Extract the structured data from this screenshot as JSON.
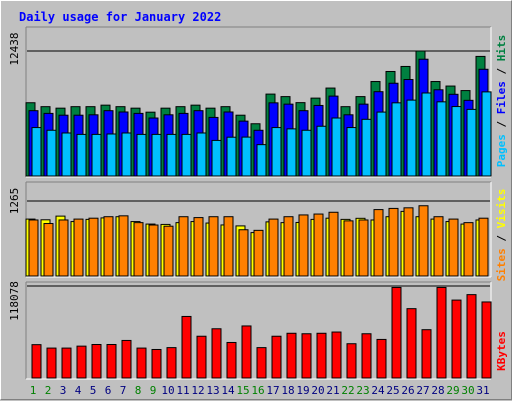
{
  "chart_data": {
    "type": "bar",
    "title": "Daily usage for January 2022",
    "categories": [
      "1",
      "2",
      "3",
      "4",
      "5",
      "6",
      "7",
      "8",
      "9",
      "10",
      "11",
      "12",
      "13",
      "14",
      "15",
      "16",
      "17",
      "18",
      "19",
      "20",
      "21",
      "22",
      "23",
      "24",
      "25",
      "26",
      "27",
      "28",
      "29",
      "30",
      "31"
    ],
    "weekend_days": [
      "1",
      "2",
      "8",
      "9",
      "15",
      "16",
      "22",
      "23",
      "29",
      "30"
    ],
    "colors": {
      "hits": "#008040",
      "files": "#0000ff",
      "pages": "#00c0ff",
      "visits": "#ffff00",
      "sites": "#ff8000",
      "kbytes": "#ff0000",
      "title": "#0000ff",
      "weekday_label": "#000080",
      "weekend_label": "#008000",
      "plot_background": "#c0c0c0"
    },
    "panels": [
      {
        "id": "hits-files-pages",
        "y_max_label": "12438",
        "ymax": 12438,
        "legend": [
          "Pages",
          "Files",
          "Hits"
        ],
        "series": [
          {
            "name": "Hits",
            "key": "hits",
            "values": [
              7290,
              6900,
              6750,
              6900,
              6900,
              7050,
              6900,
              6750,
              6350,
              6750,
              6900,
              7050,
              6750,
              6900,
              6050,
              5200,
              8150,
              7900,
              7300,
              7750,
              8750,
              6900,
              7900,
              9400,
              10400,
              10900,
              12438,
              9400,
              8950,
              8500,
              11900
            ]
          },
          {
            "name": "Files",
            "key": "files",
            "values": [
              6500,
              6230,
              6050,
              6050,
              6090,
              6500,
              6370,
              6230,
              5770,
              6090,
              6230,
              6500,
              5830,
              6370,
              5460,
              4550,
              7280,
              7150,
              6500,
              7020,
              7950,
              6090,
              7150,
              8390,
              9230,
              9600,
              11620,
              8580,
              8130,
              7530,
              10620
            ]
          },
          {
            "name": "Pages",
            "key": "pages",
            "values": [
              4820,
              4550,
              4280,
              4140,
              4140,
              4180,
              4280,
              4140,
              4140,
              4140,
              4140,
              4280,
              3540,
              3860,
              3870,
              3120,
              4820,
              4690,
              4550,
              4950,
              5770,
              4820,
              5640,
              6360,
              7280,
              7550,
              8260,
              7380,
              6910,
              6630,
              8370
            ]
          }
        ]
      },
      {
        "id": "visits-sites",
        "y_max_label": "1265",
        "ymax": 1265,
        "legend": [
          "Sites",
          "Visits"
        ],
        "series": [
          {
            "name": "Visits",
            "key": "visits",
            "values": [
              960,
              948,
              1010,
              918,
              955,
              980,
              1000,
              918,
              876,
              870,
              900,
              918,
              893,
              861,
              845,
              732,
              913,
              900,
              903,
              955,
              975,
              955,
              973,
              945,
              1000,
              1090,
              1000,
              960,
              918,
              876,
              945
            ]
          },
          {
            "name": "Sites",
            "key": "sites",
            "values": [
              945,
              885,
              945,
              960,
              975,
              1000,
              1015,
              900,
              860,
              840,
              1000,
              985,
              1000,
              1000,
              780,
              770,
              960,
              1000,
              1030,
              1045,
              1075,
              930,
              945,
              1120,
              1140,
              1150,
              1185,
              1000,
              960,
              900,
              975
            ]
          }
        ]
      },
      {
        "id": "kbytes",
        "y_max_label": "118078",
        "ymax": 118078,
        "legend": [
          "KBytes"
        ],
        "series": [
          {
            "name": "KBytes",
            "key": "kbytes",
            "values": [
              42800,
              38400,
              38400,
              40900,
              43000,
              43000,
              48200,
              38400,
              36600,
              39000,
              79000,
              53600,
              63200,
              45600,
              66800,
              39000,
              53600,
              57400,
              56800,
              57400,
              59000,
              44000,
              56800,
              49500,
              116200,
              89000,
              62000,
              116200,
              100000,
              107000,
              97600
            ]
          }
        ]
      }
    ]
  }
}
